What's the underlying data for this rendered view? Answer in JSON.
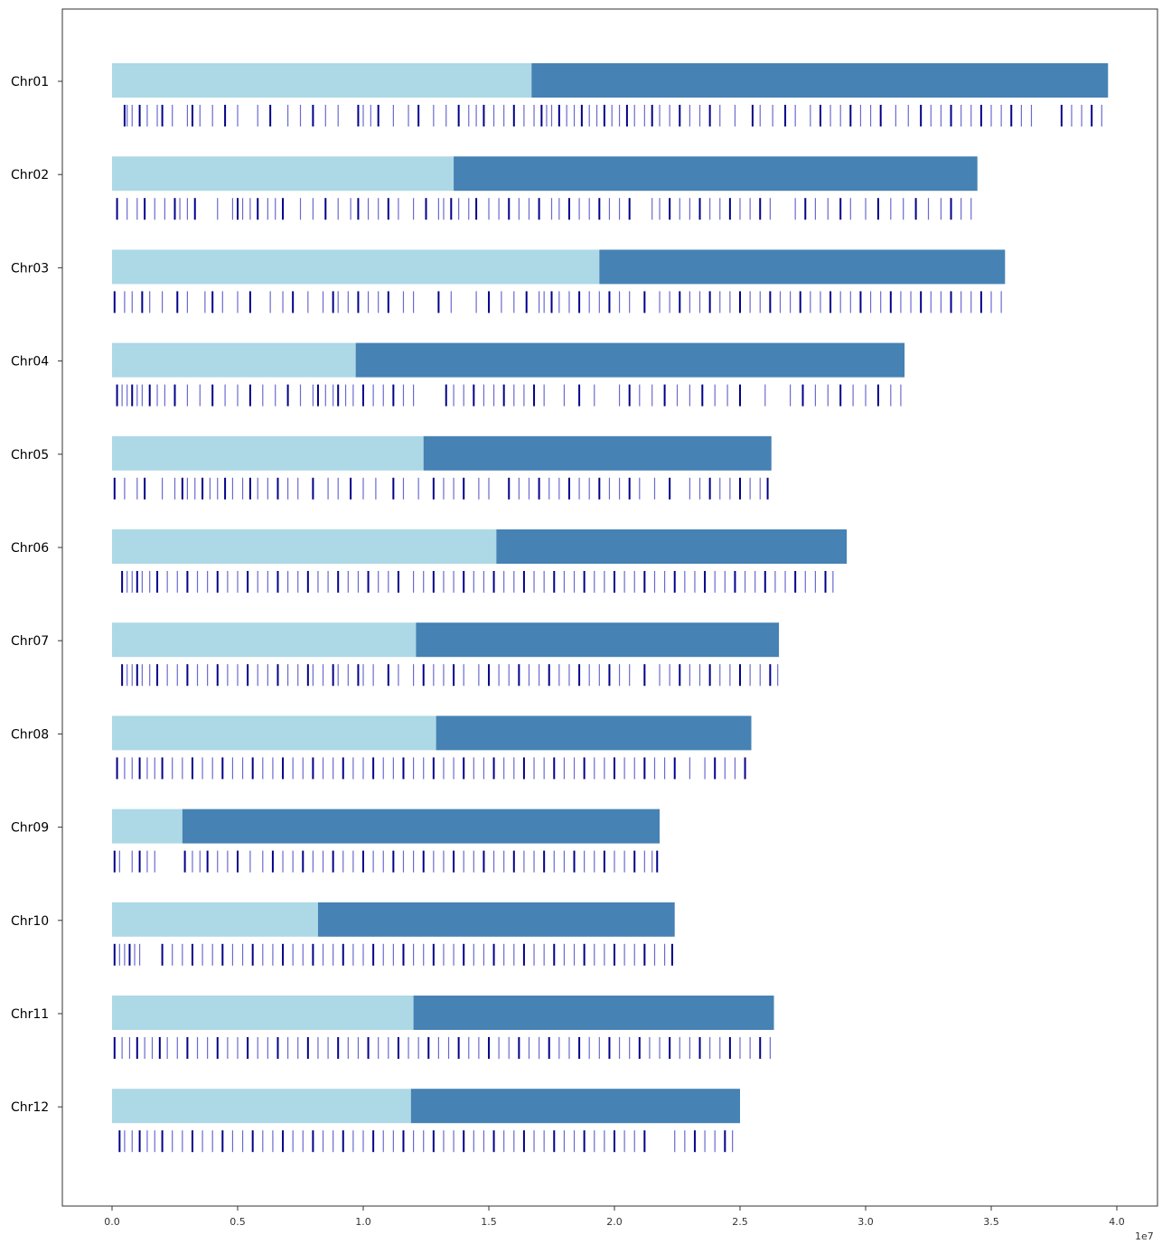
{
  "chart_data": {
    "type": "bar",
    "title": "",
    "xlabel": "",
    "ylabel": "",
    "axis_exponent": "1e7",
    "xlim": [
      -0.2,
      4.15
    ],
    "xticks": [
      0.0,
      0.5,
      1.0,
      1.5,
      2.0,
      2.5,
      3.0,
      3.5,
      4.0
    ],
    "xtick_labels": [
      "0.0",
      "0.5",
      "1.0",
      "1.5",
      "2.0",
      "2.5",
      "3.0",
      "3.5",
      "4.0"
    ],
    "x_units": "x 1e7 bp",
    "colors": {
      "first_segment": "#add8e6",
      "second_segment": "#4682b4",
      "marker_dark": "#00008b",
      "marker_light": "#6a6ad0",
      "axis": "#333333"
    },
    "chromosomes": [
      {
        "name": "Chr01",
        "length": 3.965,
        "split": 1.67,
        "markers": [
          0.05,
          0.06,
          0.08,
          0.11,
          0.14,
          0.18,
          0.2,
          0.24,
          0.3,
          0.32,
          0.35,
          0.4,
          0.45,
          0.5,
          0.58,
          0.63,
          0.7,
          0.75,
          0.8,
          0.85,
          0.9,
          0.98,
          1.0,
          1.03,
          1.06,
          1.12,
          1.18,
          1.22,
          1.28,
          1.33,
          1.38,
          1.42,
          1.45,
          1.48,
          1.52,
          1.56,
          1.6,
          1.64,
          1.68,
          1.71,
          1.73,
          1.75,
          1.78,
          1.81,
          1.84,
          1.87,
          1.9,
          1.93,
          1.96,
          1.99,
          2.02,
          2.05,
          2.08,
          2.12,
          2.15,
          2.18,
          2.22,
          2.26,
          2.3,
          2.34,
          2.38,
          2.42,
          2.48,
          2.55,
          2.58,
          2.63,
          2.68,
          2.72,
          2.78,
          2.82,
          2.86,
          2.9,
          2.94,
          2.98,
          3.02,
          3.06,
          3.12,
          3.17,
          3.22,
          3.26,
          3.3,
          3.34,
          3.38,
          3.42,
          3.46,
          3.5,
          3.54,
          3.58,
          3.62,
          3.66,
          3.78,
          3.82,
          3.86,
          3.9,
          3.94
        ]
      },
      {
        "name": "Chr02",
        "length": 3.445,
        "split": 1.36,
        "markers": [
          0.02,
          0.06,
          0.1,
          0.13,
          0.17,
          0.21,
          0.25,
          0.27,
          0.3,
          0.33,
          0.42,
          0.48,
          0.5,
          0.52,
          0.55,
          0.58,
          0.62,
          0.65,
          0.68,
          0.75,
          0.8,
          0.85,
          0.9,
          0.95,
          0.98,
          1.02,
          1.06,
          1.1,
          1.14,
          1.2,
          1.25,
          1.3,
          1.32,
          1.35,
          1.38,
          1.42,
          1.45,
          1.5,
          1.54,
          1.58,
          1.62,
          1.66,
          1.7,
          1.75,
          1.78,
          1.82,
          1.86,
          1.9,
          1.94,
          1.98,
          2.02,
          2.06,
          2.15,
          2.18,
          2.22,
          2.26,
          2.3,
          2.34,
          2.38,
          2.42,
          2.46,
          2.5,
          2.54,
          2.58,
          2.62,
          2.72,
          2.76,
          2.8,
          2.85,
          2.9,
          2.94,
          3.0,
          3.05,
          3.1,
          3.15,
          3.2,
          3.25,
          3.3,
          3.34,
          3.38,
          3.42
        ]
      },
      {
        "name": "Chr03",
        "length": 3.555,
        "split": 1.94,
        "markers": [
          0.01,
          0.05,
          0.08,
          0.12,
          0.15,
          0.2,
          0.26,
          0.3,
          0.37,
          0.4,
          0.44,
          0.5,
          0.55,
          0.63,
          0.68,
          0.72,
          0.78,
          0.84,
          0.88,
          0.9,
          0.94,
          0.98,
          1.02,
          1.06,
          1.1,
          1.16,
          1.2,
          1.3,
          1.35,
          1.45,
          1.5,
          1.55,
          1.6,
          1.65,
          1.7,
          1.72,
          1.75,
          1.78,
          1.82,
          1.86,
          1.9,
          1.94,
          1.98,
          2.02,
          2.06,
          2.12,
          2.18,
          2.22,
          2.26,
          2.3,
          2.34,
          2.38,
          2.42,
          2.46,
          2.5,
          2.54,
          2.58,
          2.62,
          2.66,
          2.7,
          2.74,
          2.78,
          2.82,
          2.86,
          2.9,
          2.94,
          2.98,
          3.02,
          3.06,
          3.1,
          3.14,
          3.18,
          3.22,
          3.26,
          3.3,
          3.34,
          3.38,
          3.42,
          3.46,
          3.5,
          3.54
        ]
      },
      {
        "name": "Chr04",
        "length": 3.155,
        "split": 0.97,
        "markers": [
          0.02,
          0.04,
          0.06,
          0.08,
          0.1,
          0.12,
          0.15,
          0.18,
          0.21,
          0.25,
          0.3,
          0.35,
          0.4,
          0.45,
          0.5,
          0.55,
          0.6,
          0.65,
          0.7,
          0.75,
          0.8,
          0.82,
          0.85,
          0.88,
          0.9,
          0.93,
          0.96,
          1.0,
          1.04,
          1.08,
          1.12,
          1.16,
          1.2,
          1.33,
          1.36,
          1.4,
          1.44,
          1.48,
          1.52,
          1.56,
          1.6,
          1.64,
          1.68,
          1.72,
          1.8,
          1.86,
          1.92,
          2.02,
          2.06,
          2.1,
          2.15,
          2.2,
          2.25,
          2.3,
          2.35,
          2.4,
          2.45,
          2.5,
          2.6,
          2.7,
          2.75,
          2.8,
          2.85,
          2.9,
          2.95,
          3.0,
          3.05,
          3.1,
          3.14
        ]
      },
      {
        "name": "Chr06",
        "length": 2.925,
        "split": 1.53,
        "markers": [
          0.04,
          0.06,
          0.08,
          0.1,
          0.12,
          0.15,
          0.18,
          0.22,
          0.26,
          0.3,
          0.34,
          0.38,
          0.42,
          0.46,
          0.5,
          0.54,
          0.58,
          0.62,
          0.66,
          0.7,
          0.74,
          0.78,
          0.82,
          0.86,
          0.9,
          0.94,
          0.98,
          1.02,
          1.06,
          1.1,
          1.14,
          1.2,
          1.24,
          1.28,
          1.32,
          1.36,
          1.4,
          1.44,
          1.48,
          1.52,
          1.56,
          1.6,
          1.64,
          1.68,
          1.72,
          1.76,
          1.8,
          1.84,
          1.88,
          1.92,
          1.96,
          2.0,
          2.04,
          2.08,
          2.12,
          2.16,
          2.2,
          2.24,
          2.28,
          2.32,
          2.36,
          2.4,
          2.44,
          2.48,
          2.52,
          2.56,
          2.6,
          2.64,
          2.68,
          2.72,
          2.76,
          2.8,
          2.84,
          2.87
        ]
      },
      {
        "name": "Chr05",
        "length": 2.625,
        "split": 1.24,
        "markers": [
          0.01,
          0.05,
          0.1,
          0.13,
          0.2,
          0.25,
          0.28,
          0.3,
          0.33,
          0.36,
          0.39,
          0.42,
          0.45,
          0.48,
          0.52,
          0.55,
          0.58,
          0.62,
          0.66,
          0.7,
          0.74,
          0.8,
          0.86,
          0.9,
          0.95,
          1.0,
          1.05,
          1.12,
          1.16,
          1.22,
          1.28,
          1.32,
          1.36,
          1.4,
          1.46,
          1.5,
          1.58,
          1.62,
          1.66,
          1.7,
          1.74,
          1.78,
          1.82,
          1.86,
          1.9,
          1.94,
          1.98,
          2.02,
          2.06,
          2.1,
          2.16,
          2.22,
          2.3,
          2.34,
          2.38,
          2.42,
          2.46,
          2.5,
          2.54,
          2.58,
          2.61
        ]
      },
      {
        "name": "Chr07",
        "length": 2.655,
        "split": 1.21,
        "markers": [
          0.04,
          0.06,
          0.08,
          0.1,
          0.12,
          0.15,
          0.18,
          0.22,
          0.26,
          0.3,
          0.34,
          0.38,
          0.42,
          0.46,
          0.5,
          0.54,
          0.58,
          0.62,
          0.66,
          0.7,
          0.74,
          0.78,
          0.8,
          0.84,
          0.88,
          0.9,
          0.94,
          0.98,
          1.0,
          1.04,
          1.1,
          1.14,
          1.2,
          1.24,
          1.28,
          1.32,
          1.36,
          1.4,
          1.46,
          1.5,
          1.54,
          1.58,
          1.62,
          1.66,
          1.7,
          1.74,
          1.78,
          1.82,
          1.86,
          1.9,
          1.94,
          1.98,
          2.02,
          2.06,
          2.12,
          2.18,
          2.22,
          2.26,
          2.3,
          2.34,
          2.38,
          2.42,
          2.46,
          2.5,
          2.54,
          2.58,
          2.62,
          2.65
        ]
      },
      {
        "name": "Chr08",
        "length": 2.545,
        "split": 1.29,
        "markers": [
          0.02,
          0.05,
          0.08,
          0.11,
          0.14,
          0.17,
          0.2,
          0.24,
          0.28,
          0.32,
          0.36,
          0.4,
          0.44,
          0.48,
          0.52,
          0.56,
          0.6,
          0.64,
          0.68,
          0.72,
          0.76,
          0.8,
          0.84,
          0.88,
          0.92,
          0.96,
          1.0,
          1.04,
          1.08,
          1.12,
          1.16,
          1.2,
          1.24,
          1.28,
          1.32,
          1.36,
          1.4,
          1.44,
          1.48,
          1.52,
          1.56,
          1.6,
          1.64,
          1.68,
          1.72,
          1.76,
          1.8,
          1.84,
          1.88,
          1.92,
          1.96,
          2.0,
          2.04,
          2.08,
          2.12,
          2.16,
          2.2,
          2.24,
          2.3,
          2.36,
          2.4,
          2.44,
          2.48,
          2.52
        ]
      },
      {
        "name": "Chr09",
        "length": 2.18,
        "split": 0.28,
        "markers": [
          0.01,
          0.03,
          0.08,
          0.11,
          0.14,
          0.17,
          0.29,
          0.32,
          0.35,
          0.38,
          0.42,
          0.46,
          0.5,
          0.55,
          0.6,
          0.64,
          0.68,
          0.72,
          0.76,
          0.8,
          0.84,
          0.88,
          0.92,
          0.96,
          1.0,
          1.04,
          1.08,
          1.12,
          1.16,
          1.2,
          1.24,
          1.28,
          1.32,
          1.36,
          1.4,
          1.44,
          1.48,
          1.52,
          1.56,
          1.6,
          1.64,
          1.68,
          1.72,
          1.76,
          1.8,
          1.84,
          1.88,
          1.92,
          1.96,
          2.0,
          2.04,
          2.08,
          2.12,
          2.15,
          2.17
        ]
      },
      {
        "name": "Chr10",
        "length": 2.24,
        "split": 0.82,
        "markers": [
          0.01,
          0.03,
          0.05,
          0.07,
          0.09,
          0.11,
          0.2,
          0.24,
          0.28,
          0.32,
          0.36,
          0.4,
          0.44,
          0.48,
          0.52,
          0.56,
          0.6,
          0.64,
          0.68,
          0.72,
          0.76,
          0.8,
          0.84,
          0.88,
          0.92,
          0.96,
          1.0,
          1.04,
          1.08,
          1.12,
          1.16,
          1.2,
          1.24,
          1.28,
          1.32,
          1.36,
          1.4,
          1.44,
          1.48,
          1.52,
          1.56,
          1.6,
          1.64,
          1.68,
          1.72,
          1.76,
          1.8,
          1.84,
          1.88,
          1.92,
          1.96,
          2.0,
          2.04,
          2.08,
          2.12,
          2.16,
          2.2,
          2.23
        ]
      },
      {
        "name": "Chr11",
        "length": 2.635,
        "split": 1.2,
        "markers": [
          0.01,
          0.04,
          0.07,
          0.1,
          0.13,
          0.16,
          0.19,
          0.22,
          0.26,
          0.3,
          0.34,
          0.38,
          0.42,
          0.46,
          0.5,
          0.54,
          0.58,
          0.62,
          0.66,
          0.7,
          0.74,
          0.78,
          0.82,
          0.86,
          0.9,
          0.94,
          0.98,
          1.02,
          1.06,
          1.1,
          1.14,
          1.18,
          1.22,
          1.26,
          1.3,
          1.34,
          1.38,
          1.42,
          1.46,
          1.5,
          1.54,
          1.58,
          1.62,
          1.66,
          1.7,
          1.74,
          1.78,
          1.82,
          1.86,
          1.9,
          1.94,
          1.98,
          2.02,
          2.06,
          2.1,
          2.14,
          2.18,
          2.22,
          2.26,
          2.3,
          2.34,
          2.38,
          2.42,
          2.46,
          2.5,
          2.54,
          2.58,
          2.62
        ]
      },
      {
        "name": "Chr12",
        "length": 2.5,
        "split": 1.19,
        "markers": [
          0.03,
          0.05,
          0.08,
          0.11,
          0.14,
          0.17,
          0.2,
          0.24,
          0.28,
          0.32,
          0.36,
          0.4,
          0.44,
          0.48,
          0.52,
          0.56,
          0.6,
          0.64,
          0.68,
          0.72,
          0.76,
          0.8,
          0.84,
          0.88,
          0.92,
          0.96,
          1.0,
          1.04,
          1.08,
          1.12,
          1.16,
          1.2,
          1.24,
          1.28,
          1.32,
          1.36,
          1.4,
          1.44,
          1.48,
          1.52,
          1.56,
          1.6,
          1.64,
          1.68,
          1.72,
          1.76,
          1.8,
          1.84,
          1.88,
          1.92,
          1.96,
          2.0,
          2.04,
          2.08,
          2.12,
          2.24,
          2.28,
          2.32,
          2.36,
          2.4,
          2.44,
          2.47
        ]
      }
    ]
  }
}
